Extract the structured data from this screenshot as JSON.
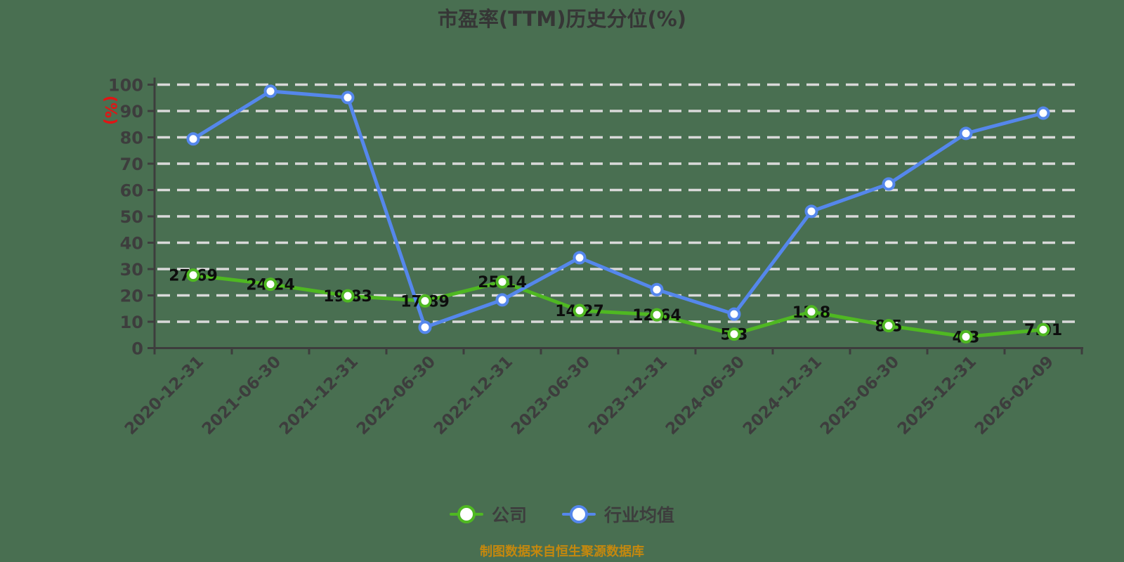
{
  "chart_data": {
    "type": "line",
    "title": "市盈率(TTM)历史分位(%)",
    "ylabel": "(%)",
    "ylim": [
      0,
      100
    ],
    "y_tick_step": 10,
    "grid": "horizontal-dashed",
    "legend_position": "bottom",
    "source_note": "制图数据来自恒生聚源数据库",
    "categories": [
      "2020-12-31",
      "2021-06-30",
      "2021-12-31",
      "2022-06-30",
      "2022-12-31",
      "2023-06-30",
      "2023-12-31",
      "2024-06-30",
      "2024-12-31",
      "2025-06-30",
      "2025-12-31",
      "2026-02-09"
    ],
    "series": [
      {
        "name": "公司",
        "color": "#4fb822",
        "show_value_labels": true,
        "values": [
          27.69,
          24.24,
          19.83,
          17.89,
          25.14,
          14.27,
          12.64,
          5.3,
          13.8,
          8.5,
          4.3,
          7.01
        ]
      },
      {
        "name": "行业均值",
        "color": "#5587ec",
        "show_value_labels": false,
        "values": [
          79.4,
          97.5,
          95.1,
          7.9,
          18.3,
          34.3,
          22.2,
          12.9,
          51.9,
          62.3,
          81.5,
          89.2
        ]
      }
    ]
  },
  "colors": {
    "background": "#496f51",
    "title_text": "#363636",
    "axis": "#3d3d3d",
    "tick_text": "#3d3d3d",
    "gridline": "#d9d9d9",
    "ylabel_text": "#e01515",
    "data_label": "#0d0d0d",
    "marker_fill": "#ffffff",
    "source_note_text": "#c4880e"
  }
}
